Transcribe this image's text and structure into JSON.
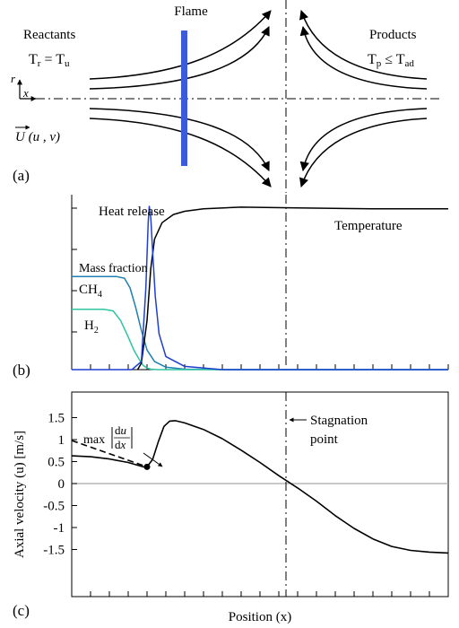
{
  "colors": {
    "flame": "#3b5bdb",
    "heat_release": "#1f3fcf",
    "ch4": "#1f7fb0",
    "h2": "#2ec4a0",
    "temperature": "#000000",
    "zero_line": "#a8a8a8",
    "axis": "#000000"
  },
  "panel_a": {
    "label": "(a)",
    "flame_label": "Flame",
    "reactants_label": "Reactants",
    "reactants_temp": "T_r = T_u",
    "products_label": "Products",
    "products_temp": "T_p ≤ T_ad",
    "r_axis": "r",
    "x_axis": "x",
    "velocity_label": "U (u , v)"
  },
  "panel_b": {
    "label": "(b)",
    "heat_release_label": "Heat release",
    "temperature_label": "Temperature",
    "mass_fraction_label": "Mass fraction",
    "ch4_label": "CH4",
    "h2_label": "H2"
  },
  "panel_c": {
    "label": "(c)",
    "ylabel": "Axial velocity (u) [m/s]",
    "xlabel": "Position (x)",
    "annotation_max": "max |du/dx|",
    "stagnation_label_line1": "Stagnation",
    "stagnation_label_line2": "point"
  },
  "chart_data": [
    {
      "type": "line",
      "panel": "b",
      "x_range": [
        0,
        1
      ],
      "y_range": [
        0,
        1
      ],
      "series": [
        {
          "name": "Temperature",
          "x": [
            0.175,
            0.185,
            0.2,
            0.21,
            0.22,
            0.24,
            0.27,
            0.3,
            0.35,
            0.45,
            0.6,
            0.8,
            1.0
          ],
          "y": [
            0.0,
            0.04,
            0.3,
            0.62,
            0.8,
            0.9,
            0.95,
            0.97,
            0.985,
            0.995,
            0.99,
            0.985,
            0.985
          ]
        },
        {
          "name": "Heat release",
          "x": [
            0.0,
            0.16,
            0.185,
            0.197,
            0.203,
            0.206,
            0.21,
            0.215,
            0.222,
            0.232,
            0.25,
            0.3,
            0.4,
            1.0
          ],
          "y": [
            0.0,
            0.0,
            0.05,
            0.5,
            0.9,
            1.0,
            0.93,
            0.72,
            0.45,
            0.22,
            0.08,
            0.02,
            0.0,
            0.0
          ]
        },
        {
          "name": "CH4",
          "x": [
            0.0,
            0.12,
            0.14,
            0.155,
            0.17,
            0.185,
            0.2,
            0.22,
            0.25,
            0.3,
            0.4,
            1.0
          ],
          "y": [
            0.57,
            0.57,
            0.56,
            0.5,
            0.38,
            0.24,
            0.12,
            0.05,
            0.015,
            0.003,
            0.0,
            0.0
          ]
        },
        {
          "name": "H2",
          "x": [
            0.0,
            0.085,
            0.11,
            0.13,
            0.15,
            0.165,
            0.18,
            0.19,
            0.2,
            0.21,
            0.23,
            0.3,
            1.0
          ],
          "y": [
            0.37,
            0.37,
            0.36,
            0.3,
            0.2,
            0.12,
            0.06,
            0.025,
            0.01,
            0.003,
            0.0,
            0.0,
            0.0
          ]
        }
      ]
    },
    {
      "type": "line",
      "panel": "c",
      "ylabel": "Axial velocity (u) [m/s]",
      "xlabel": "Position (x)",
      "ylim": [
        -1.75,
        1.75
      ],
      "yticks": [
        "1.5",
        "1",
        "0.5",
        "0",
        "-0.5",
        "-1",
        "-1.5"
      ],
      "x_range": [
        0,
        1
      ],
      "series": [
        {
          "name": "u",
          "x": [
            0.0,
            0.05,
            0.1,
            0.15,
            0.19,
            0.2,
            0.215,
            0.23,
            0.245,
            0.26,
            0.275,
            0.3,
            0.35,
            0.4,
            0.45,
            0.5,
            0.55,
            0.6,
            0.65,
            0.7,
            0.75,
            0.8,
            0.85,
            0.9,
            0.95,
            1.0
          ],
          "y": [
            0.63,
            0.61,
            0.56,
            0.48,
            0.38,
            0.38,
            0.55,
            0.95,
            1.3,
            1.42,
            1.43,
            1.38,
            1.23,
            1.02,
            0.76,
            0.48,
            0.18,
            -0.1,
            -0.4,
            -0.73,
            -1.02,
            -1.26,
            -1.43,
            -1.52,
            -1.56,
            -1.58
          ]
        },
        {
          "name": "tangent",
          "dashed": true,
          "x": [
            0.0,
            0.2
          ],
          "y": [
            0.98,
            0.38
          ]
        }
      ],
      "marker": {
        "x": 0.2,
        "y": 0.38
      },
      "stagnation_x": 0.6
    }
  ]
}
